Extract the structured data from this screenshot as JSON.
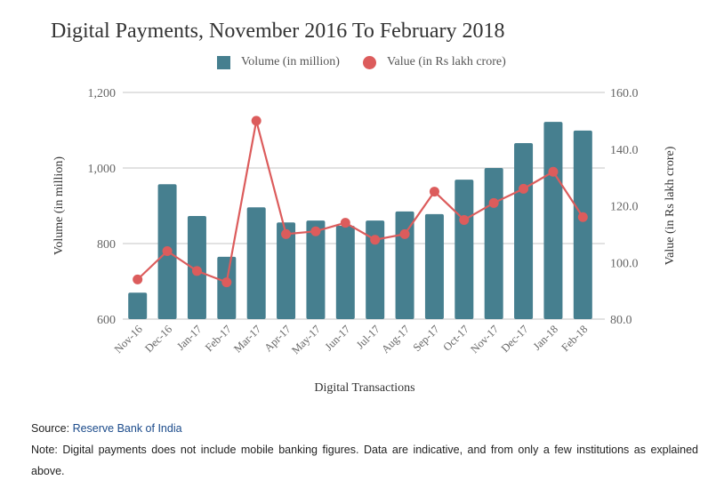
{
  "chart": {
    "title": "Digital Payments, November 2016 To February 2018",
    "legend": {
      "bar_label": "Volume (in million)",
      "line_label": "Value (in Rs lakh crore)"
    },
    "colors": {
      "bar": "#467f8f",
      "line": "#dc5c5c",
      "grid": "#d0d0d0",
      "axis_text": "#666666"
    }
  },
  "footer": {
    "source_label": "Source:",
    "source_link": "Reserve Bank of India",
    "note": "Note: Digital payments does not include mobile banking figures. Data are indicative, and from only a few institutions as explained above."
  },
  "chart_data": {
    "type": "bar",
    "title": "Digital Payments, November 2016 To February 2018",
    "xlabel": "Digital Transactions",
    "ylabel": "Volume (in million)",
    "y2label": "Value (in Rs lakh crore)",
    "ylim": [
      600,
      1200
    ],
    "y2lim": [
      80,
      160
    ],
    "yticks": [
      "600",
      "800",
      "1,000",
      "1,200"
    ],
    "y2ticks": [
      "80.0",
      "100.0",
      "120.0",
      "140.0",
      "160.0"
    ],
    "grid": true,
    "legend_position": "top",
    "categories": [
      "Nov-16",
      "Dec-16",
      "Jan-17",
      "Feb-17",
      "Mar-17",
      "Apr-17",
      "May-17",
      "Jun-17",
      "Jul-17",
      "Aug-17",
      "Sep-17",
      "Oct-17",
      "Nov-17",
      "Dec-17",
      "Jan-18",
      "Feb-18"
    ],
    "series": [
      {
        "name": "Volume (in million)",
        "type": "bar",
        "axis": "left",
        "values": [
          670,
          957,
          873,
          765,
          896,
          856,
          861,
          847,
          861,
          885,
          878,
          969,
          1000,
          1066,
          1122,
          1099
        ]
      },
      {
        "name": "Value (in Rs lakh crore)",
        "type": "line",
        "axis": "right",
        "values": [
          94,
          104,
          97,
          93,
          150,
          110,
          111,
          114,
          108,
          110,
          125,
          115,
          121,
          126,
          132,
          116
        ]
      }
    ]
  }
}
